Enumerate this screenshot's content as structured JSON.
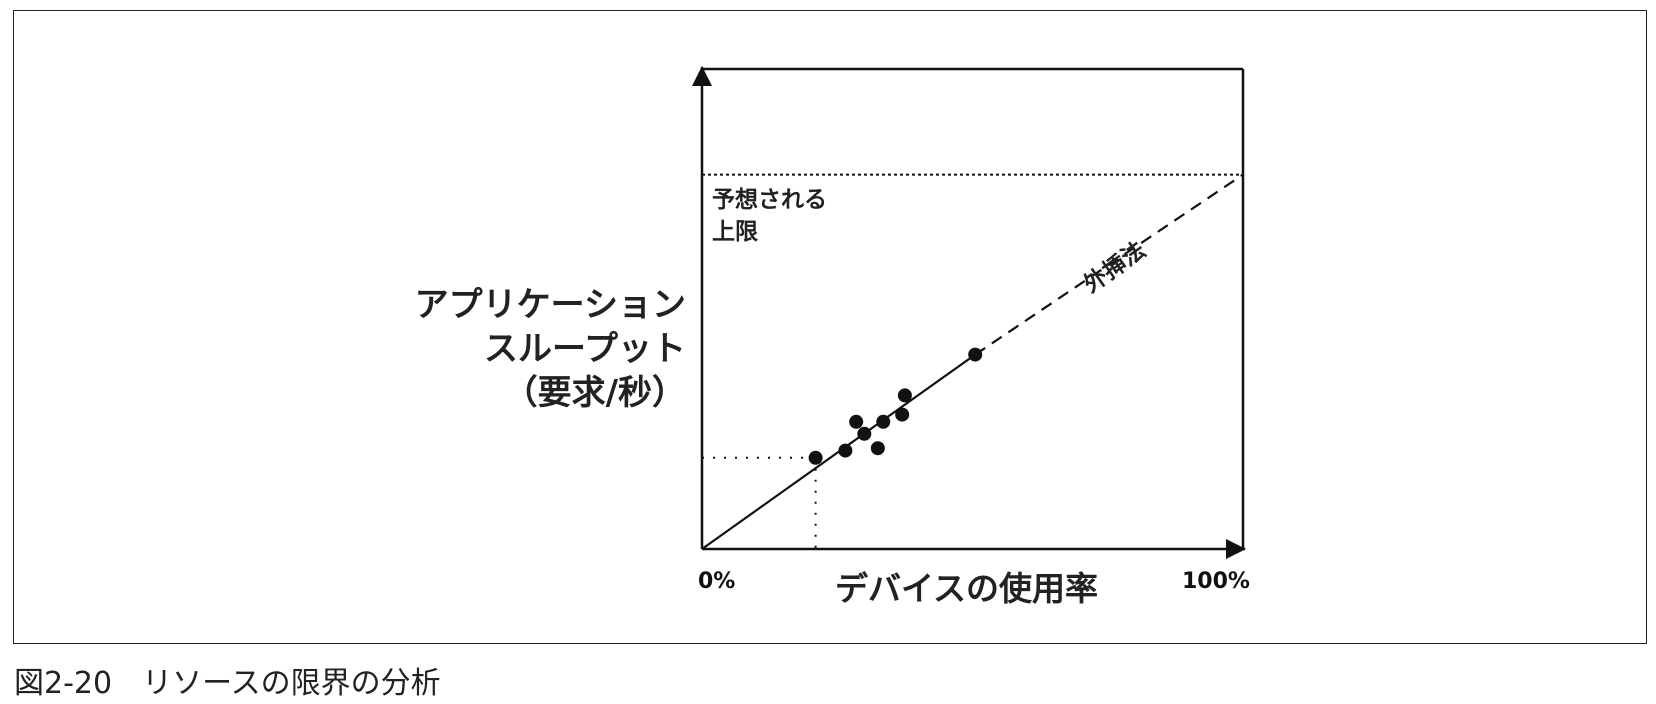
{
  "caption": "図2-20　リソースの限界の分析",
  "chart_data": {
    "type": "scatter",
    "xlabel": "デバイスの使用率",
    "ylabel_lines": [
      "アプリケーション",
      "スループット",
      "（要求/秒）"
    ],
    "x_tick_labels": [
      "0%",
      "100%"
    ],
    "xlim": [
      0,
      100
    ],
    "ylim": [
      0,
      100
    ],
    "points": [
      {
        "x": 21,
        "y": 19
      },
      {
        "x": 26.5,
        "y": 20.5
      },
      {
        "x": 28.5,
        "y": 26.5
      },
      {
        "x": 30,
        "y": 24
      },
      {
        "x": 32.5,
        "y": 21
      },
      {
        "x": 33.5,
        "y": 26.5
      },
      {
        "x": 37,
        "y": 28
      },
      {
        "x": 37.5,
        "y": 32
      },
      {
        "x": 50.5,
        "y": 40.5
      }
    ],
    "fit_line": {
      "x0": 0,
      "y0": 0,
      "x1": 50.5,
      "y1": 40.5,
      "style": "solid"
    },
    "extrapolation_line": {
      "x0": 50.5,
      "y0": 40.5,
      "x1": 100,
      "y1": 78,
      "style": "dashed"
    },
    "upper_limit": {
      "y": 78,
      "style": "dotted"
    },
    "reference_point": {
      "x": 21,
      "y": 19,
      "style": "dotted"
    },
    "annotations": {
      "upper_limit_lines": [
        "予想される",
        "上限"
      ],
      "extrapolation": "外挿法"
    },
    "grid": false,
    "legend": "none"
  }
}
